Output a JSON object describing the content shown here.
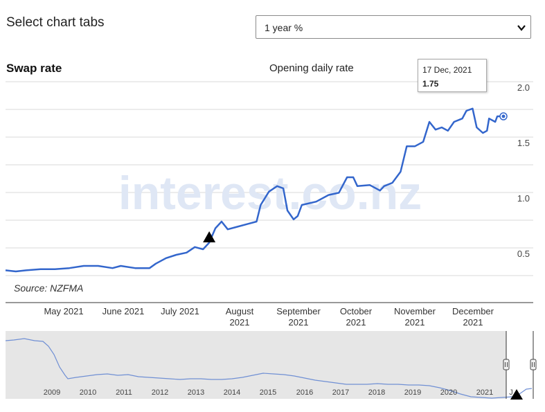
{
  "header": {
    "tabs_title": "Select chart tabs"
  },
  "range_select": {
    "selected": "1 year %"
  },
  "chart": {
    "title": "Swap rate",
    "subtitle": "Opening daily rate",
    "source": "Source: NZFMA",
    "watermark": "interest.co.nz",
    "line_color": "#3366cc"
  },
  "tooltip": {
    "date": "17 Dec, 2021",
    "value": "1.75"
  },
  "y_ticks": [
    "2.0",
    "1.5",
    "1.0",
    "0.5"
  ],
  "x_months": [
    {
      "line1": "May 2021",
      "line2": ""
    },
    {
      "line1": "June 2021",
      "line2": ""
    },
    {
      "line1": "July 2021",
      "line2": ""
    },
    {
      "line1": "August",
      "line2": "2021"
    },
    {
      "line1": "September",
      "line2": "2021"
    },
    {
      "line1": "October",
      "line2": "2021"
    },
    {
      "line1": "November",
      "line2": "2021"
    },
    {
      "line1": "December",
      "line2": "2021"
    }
  ],
  "navigator_years": [
    "2009",
    "2010",
    "2011",
    "2012",
    "2013",
    "2014",
    "2015",
    "2016",
    "2017",
    "2018",
    "2019",
    "2020",
    "2021",
    "J"
  ],
  "chart_data": {
    "type": "line",
    "title": "Swap rate",
    "subtitle": "Opening daily rate",
    "ylim": [
      0.3,
      2.0
    ],
    "y_ticks": [
      0.5,
      1.0,
      1.5,
      2.0
    ],
    "series": [
      {
        "values": [
          [
            "2021-04-19",
            0.36
          ],
          [
            "2021-04-24",
            0.35
          ],
          [
            "2021-04-29",
            0.36
          ],
          [
            "2021-05-06",
            0.37
          ],
          [
            "2021-05-13",
            0.37
          ],
          [
            "2021-05-20",
            0.38
          ],
          [
            "2021-05-27",
            0.4
          ],
          [
            "2021-06-03",
            0.4
          ],
          [
            "2021-06-10",
            0.38
          ],
          [
            "2021-06-14",
            0.4
          ],
          [
            "2021-06-21",
            0.38
          ],
          [
            "2021-06-28",
            0.38
          ],
          [
            "2021-07-01",
            0.42
          ],
          [
            "2021-07-06",
            0.47
          ],
          [
            "2021-07-11",
            0.5
          ],
          [
            "2021-07-16",
            0.52
          ],
          [
            "2021-07-20",
            0.57
          ],
          [
            "2021-07-24",
            0.55
          ],
          [
            "2021-07-27",
            0.61
          ],
          [
            "2021-07-30",
            0.74
          ],
          [
            "2021-08-02",
            0.8
          ],
          [
            "2021-08-05",
            0.73
          ],
          [
            "2021-08-09",
            0.75
          ],
          [
            "2021-08-15",
            0.78
          ],
          [
            "2021-08-19",
            0.8
          ],
          [
            "2021-08-21",
            0.95
          ],
          [
            "2021-08-25",
            1.07
          ],
          [
            "2021-08-29",
            1.12
          ],
          [
            "2021-09-01",
            1.1
          ],
          [
            "2021-09-03",
            0.9
          ],
          [
            "2021-09-06",
            0.82
          ],
          [
            "2021-09-08",
            0.85
          ],
          [
            "2021-09-10",
            0.95
          ],
          [
            "2021-09-17",
            0.98
          ],
          [
            "2021-09-23",
            1.04
          ],
          [
            "2021-09-28",
            1.06
          ],
          [
            "2021-10-02",
            1.2
          ],
          [
            "2021-10-05",
            1.2
          ],
          [
            "2021-10-07",
            1.12
          ],
          [
            "2021-10-13",
            1.13
          ],
          [
            "2021-10-18",
            1.08
          ],
          [
            "2021-10-20",
            1.12
          ],
          [
            "2021-10-24",
            1.15
          ],
          [
            "2021-10-28",
            1.25
          ],
          [
            "2021-10-31",
            1.48
          ],
          [
            "2021-11-04",
            1.48
          ],
          [
            "2021-11-08",
            1.52
          ],
          [
            "2021-11-11",
            1.7
          ],
          [
            "2021-11-14",
            1.63
          ],
          [
            "2021-11-17",
            1.65
          ],
          [
            "2021-11-20",
            1.62
          ],
          [
            "2021-11-23",
            1.7
          ],
          [
            "2021-11-27",
            1.73
          ],
          [
            "2021-11-29",
            1.8
          ],
          [
            "2021-12-02",
            1.82
          ],
          [
            "2021-12-04",
            1.65
          ],
          [
            "2021-12-07",
            1.6
          ],
          [
            "2021-12-09",
            1.62
          ],
          [
            "2021-12-10",
            1.73
          ],
          [
            "2021-12-13",
            1.7
          ],
          [
            "2021-12-14",
            1.75
          ],
          [
            "2021-12-17",
            1.75
          ]
        ]
      }
    ],
    "markers": [
      "2021-07-27"
    ]
  }
}
